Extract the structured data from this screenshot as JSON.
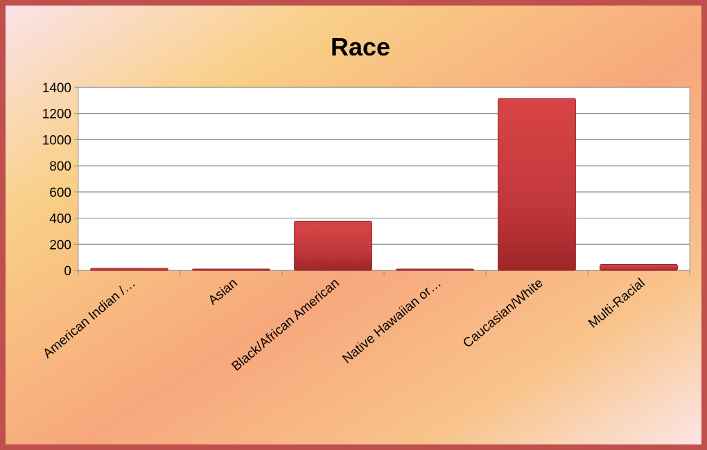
{
  "chart_data": {
    "type": "bar",
    "title": "Race",
    "categories": [
      "American Indian /…",
      "Asian",
      "Black/African American",
      "Native Hawaiian or…",
      "Caucasian/White",
      "Multi-Racial"
    ],
    "values": [
      15,
      3,
      375,
      8,
      1315,
      45
    ],
    "xlabel": "",
    "ylabel": "",
    "ylim": [
      0,
      1400
    ],
    "yticks": [
      0,
      200,
      400,
      600,
      800,
      1000,
      1200,
      1400
    ],
    "grid": true,
    "legend": "none",
    "colors": {
      "bar": "#c9393c",
      "bar_dark": "#8e1f22",
      "border": "#c0504d",
      "plot_bg": "#ffffff"
    }
  }
}
